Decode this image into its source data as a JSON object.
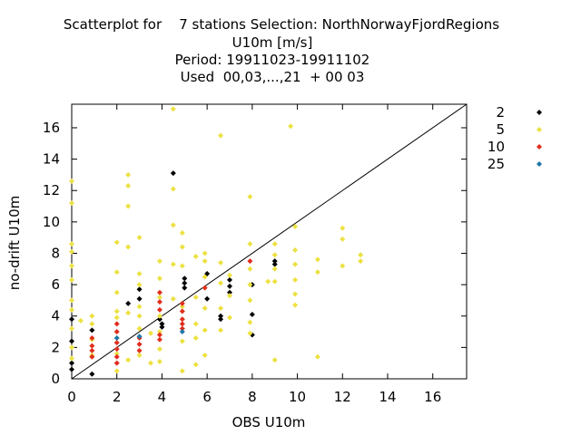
{
  "chart_data": {
    "type": "scatter",
    "title_lines": [
      "Scatterplot for    7 stations Selection: NorthNorwayFjordRegions",
      "U10m [m/s]",
      "Period: 19911023-19911102",
      "Used  00,03,...,21  + 00 03"
    ],
    "xlabel": "OBS U10m",
    "ylabel": "no-drift U10m",
    "xlim": [
      0,
      17.5
    ],
    "ylim": [
      0,
      17.5
    ],
    "xticks": [
      0,
      2,
      4,
      6,
      8,
      10,
      12,
      14,
      16
    ],
    "yticks": [
      0,
      2,
      4,
      6,
      8,
      10,
      12,
      14,
      16
    ],
    "grid": false,
    "diagonal_line": true,
    "legend_position": "outside-right",
    "series": [
      {
        "name": "2",
        "color": "#000000",
        "points": [
          [
            0,
            0.6
          ],
          [
            0,
            1.0
          ],
          [
            0,
            2.4
          ],
          [
            0,
            3.8
          ],
          [
            0.9,
            0.3
          ],
          [
            0.9,
            3.1
          ],
          [
            2.5,
            4.8
          ],
          [
            3,
            5.1
          ],
          [
            3,
            5.7
          ],
          [
            3.9,
            3.8
          ],
          [
            4,
            3.5
          ],
          [
            4,
            3.3
          ],
          [
            4.5,
            13.1
          ],
          [
            5,
            5.8
          ],
          [
            5,
            6.1
          ],
          [
            5,
            6.4
          ],
          [
            6,
            6.7
          ],
          [
            6,
            5.1
          ],
          [
            6.6,
            3.8
          ],
          [
            6.6,
            4.0
          ],
          [
            7,
            5.9
          ],
          [
            7,
            5.5
          ],
          [
            7,
            6.3
          ],
          [
            8,
            4.1
          ],
          [
            8,
            2.8
          ],
          [
            8,
            6.0
          ],
          [
            9,
            7.3
          ],
          [
            9,
            7.5
          ]
        ]
      },
      {
        "name": "5",
        "color": "#ece142",
        "points": [
          [
            0,
            12.6
          ],
          [
            0,
            11.2
          ],
          [
            0,
            8.6
          ],
          [
            0,
            8.1
          ],
          [
            0,
            7.2
          ],
          [
            0,
            6.3
          ],
          [
            0,
            5.0
          ],
          [
            0,
            4.4
          ],
          [
            0,
            3.2
          ],
          [
            0,
            2.0
          ],
          [
            0,
            1.3
          ],
          [
            0.4,
            3.7
          ],
          [
            0.9,
            4.0
          ],
          [
            0.9,
            3.5
          ],
          [
            0.9,
            2.5
          ],
          [
            0.9,
            1.5
          ],
          [
            2,
            8.7
          ],
          [
            2,
            6.8
          ],
          [
            2,
            5.5
          ],
          [
            2,
            4.3
          ],
          [
            2,
            3.9
          ],
          [
            2,
            2.6
          ],
          [
            2,
            1.6
          ],
          [
            2,
            0.5
          ],
          [
            2.5,
            13.0
          ],
          [
            2.5,
            12.3
          ],
          [
            2.5,
            11.0
          ],
          [
            2.5,
            8.4
          ],
          [
            2.5,
            4.2
          ],
          [
            2.5,
            1.2
          ],
          [
            3,
            9.0
          ],
          [
            3,
            6.7
          ],
          [
            3,
            6.0
          ],
          [
            3,
            4.6
          ],
          [
            3,
            4.0
          ],
          [
            3,
            3.2
          ],
          [
            3,
            1.5
          ],
          [
            3.5,
            2.9
          ],
          [
            3.5,
            1.0
          ],
          [
            3.9,
            7.5
          ],
          [
            3.9,
            6.4
          ],
          [
            3.9,
            5.2
          ],
          [
            3.9,
            4.0
          ],
          [
            3.9,
            3.0
          ],
          [
            3.9,
            1.9
          ],
          [
            3.9,
            1.1
          ],
          [
            4.5,
            17.2
          ],
          [
            4.5,
            12.1
          ],
          [
            4.5,
            9.8
          ],
          [
            4.5,
            7.3
          ],
          [
            4.5,
            5.1
          ],
          [
            4.9,
            9.3
          ],
          [
            4.9,
            8.4
          ],
          [
            4.9,
            7.2
          ],
          [
            4.9,
            4.6
          ],
          [
            4.9,
            2.4
          ],
          [
            4.9,
            0.5
          ],
          [
            5.5,
            7.8
          ],
          [
            5.5,
            5.2
          ],
          [
            5.5,
            3.5
          ],
          [
            5.5,
            2.6
          ],
          [
            5.5,
            0.9
          ],
          [
            5.9,
            8.0
          ],
          [
            5.9,
            7.5
          ],
          [
            5.9,
            6.5
          ],
          [
            5.9,
            4.5
          ],
          [
            5.9,
            3.1
          ],
          [
            5.9,
            1.5
          ],
          [
            6.6,
            15.5
          ],
          [
            6.6,
            7.4
          ],
          [
            6.6,
            6.1
          ],
          [
            6.6,
            4.5
          ],
          [
            6.6,
            3.1
          ],
          [
            7,
            6.6
          ],
          [
            7,
            5.3
          ],
          [
            7,
            3.9
          ],
          [
            7.9,
            11.6
          ],
          [
            7.9,
            8.6
          ],
          [
            7.9,
            7.0
          ],
          [
            7.9,
            6.0
          ],
          [
            7.9,
            5.0
          ],
          [
            7.9,
            3.6
          ],
          [
            7.9,
            2.9
          ],
          [
            8.7,
            6.2
          ],
          [
            9,
            8.6
          ],
          [
            9,
            7.9
          ],
          [
            9,
            7.0
          ],
          [
            9,
            6.2
          ],
          [
            9,
            1.2
          ],
          [
            9.7,
            16.1
          ],
          [
            9.9,
            9.7
          ],
          [
            9.9,
            8.2
          ],
          [
            9.9,
            7.3
          ],
          [
            9.9,
            6.3
          ],
          [
            9.9,
            5.4
          ],
          [
            9.9,
            4.7
          ],
          [
            10.9,
            7.6
          ],
          [
            10.9,
            6.8
          ],
          [
            10.9,
            1.4
          ],
          [
            12,
            9.6
          ],
          [
            12,
            8.9
          ],
          [
            12,
            7.2
          ],
          [
            12.8,
            7.9
          ],
          [
            12.8,
            7.5
          ]
        ]
      },
      {
        "name": "10",
        "color": "#e02d1c",
        "points": [
          [
            0.9,
            2.6
          ],
          [
            0.9,
            2.1
          ],
          [
            0.9,
            1.8
          ],
          [
            0.9,
            1.4
          ],
          [
            2,
            3.5
          ],
          [
            2,
            3.0
          ],
          [
            2,
            2.3
          ],
          [
            2,
            1.9
          ],
          [
            2,
            1.4
          ],
          [
            2,
            1.0
          ],
          [
            3,
            2.6
          ],
          [
            3,
            2.2
          ],
          [
            3,
            1.8
          ],
          [
            3.9,
            5.5
          ],
          [
            3.9,
            4.9
          ],
          [
            3.9,
            4.4
          ],
          [
            3.9,
            2.8
          ],
          [
            3.9,
            2.5
          ],
          [
            4.9,
            4.8
          ],
          [
            4.9,
            4.3
          ],
          [
            4.9,
            3.8
          ],
          [
            4.9,
            3.5
          ],
          [
            4.9,
            3.2
          ],
          [
            5.9,
            5.8
          ],
          [
            7.9,
            7.5
          ]
        ]
      },
      {
        "name": "25",
        "color": "#1f77a8",
        "points": [
          [
            2,
            2.6
          ],
          [
            3,
            2.7
          ],
          [
            4.9,
            3.0
          ]
        ]
      }
    ]
  }
}
